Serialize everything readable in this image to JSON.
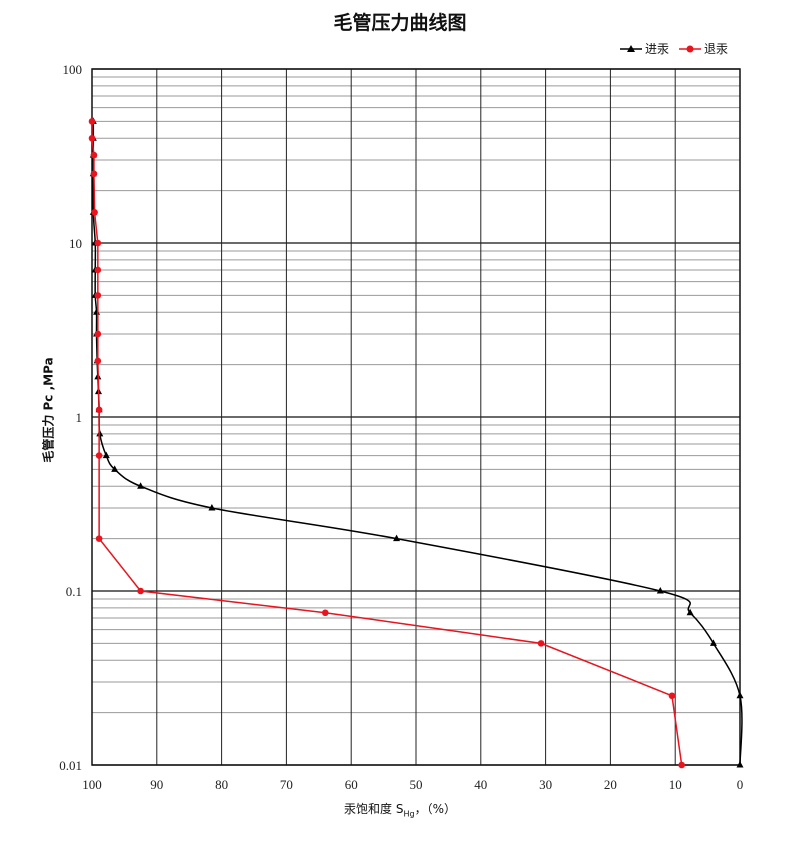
{
  "chart_data": {
    "type": "line",
    "title": "毛管压力曲线图",
    "xlabel": "汞饱和度 S",
    "xlabel_sub": "Hg",
    "xlabel_suffix": "，（%）",
    "ylabel": "毛管压力 Pc ,MPa",
    "xlim": [
      100,
      0
    ],
    "ylim": [
      0.01,
      100
    ],
    "yscale": "log",
    "x_reversed": true,
    "grid": true,
    "legend_position": "top-right",
    "x_ticks": [
      "100",
      "90",
      "80",
      "70",
      "60",
      "50",
      "40",
      "30",
      "20",
      "10",
      "0"
    ],
    "y_ticks": [
      "100",
      "10",
      "1",
      "0.1",
      "0.01"
    ],
    "series": [
      {
        "name": "进汞",
        "color": "#000000",
        "marker": "triangle",
        "points": [
          [
            99.8,
            50
          ],
          [
            99.8,
            40
          ],
          [
            99.8,
            32
          ],
          [
            99.8,
            25
          ],
          [
            99.8,
            15
          ],
          [
            99.5,
            10
          ],
          [
            99.5,
            7
          ],
          [
            99.5,
            5
          ],
          [
            99.3,
            4
          ],
          [
            99.3,
            3
          ],
          [
            99.2,
            2.1
          ],
          [
            99.1,
            1.7
          ],
          [
            99.0,
            1.4
          ],
          [
            98.9,
            1.1
          ],
          [
            98.8,
            0.8
          ],
          [
            97.8,
            0.6
          ],
          [
            96.5,
            0.5
          ],
          [
            92.5,
            0.4
          ],
          [
            81.5,
            0.3
          ],
          [
            53.0,
            0.2
          ],
          [
            12.3,
            0.1
          ],
          [
            7.7,
            0.075
          ],
          [
            4.1,
            0.05
          ],
          [
            0.0,
            0.025
          ],
          [
            0.0,
            0.01
          ]
        ]
      },
      {
        "name": "退汞",
        "color": "#e8141e",
        "marker": "circle",
        "points": [
          [
            100.0,
            50
          ],
          [
            100.0,
            40
          ],
          [
            99.7,
            32
          ],
          [
            99.7,
            25
          ],
          [
            99.6,
            15
          ],
          [
            99.1,
            10
          ],
          [
            99.1,
            7
          ],
          [
            99.1,
            5
          ],
          [
            99.1,
            3
          ],
          [
            99.1,
            2.1
          ],
          [
            98.9,
            1.1
          ],
          [
            98.9,
            0.6
          ],
          [
            98.9,
            0.2
          ],
          [
            92.5,
            0.1
          ],
          [
            64.0,
            0.075
          ],
          [
            30.7,
            0.05
          ],
          [
            10.5,
            0.025
          ],
          [
            9.0,
            0.01
          ]
        ]
      }
    ]
  }
}
